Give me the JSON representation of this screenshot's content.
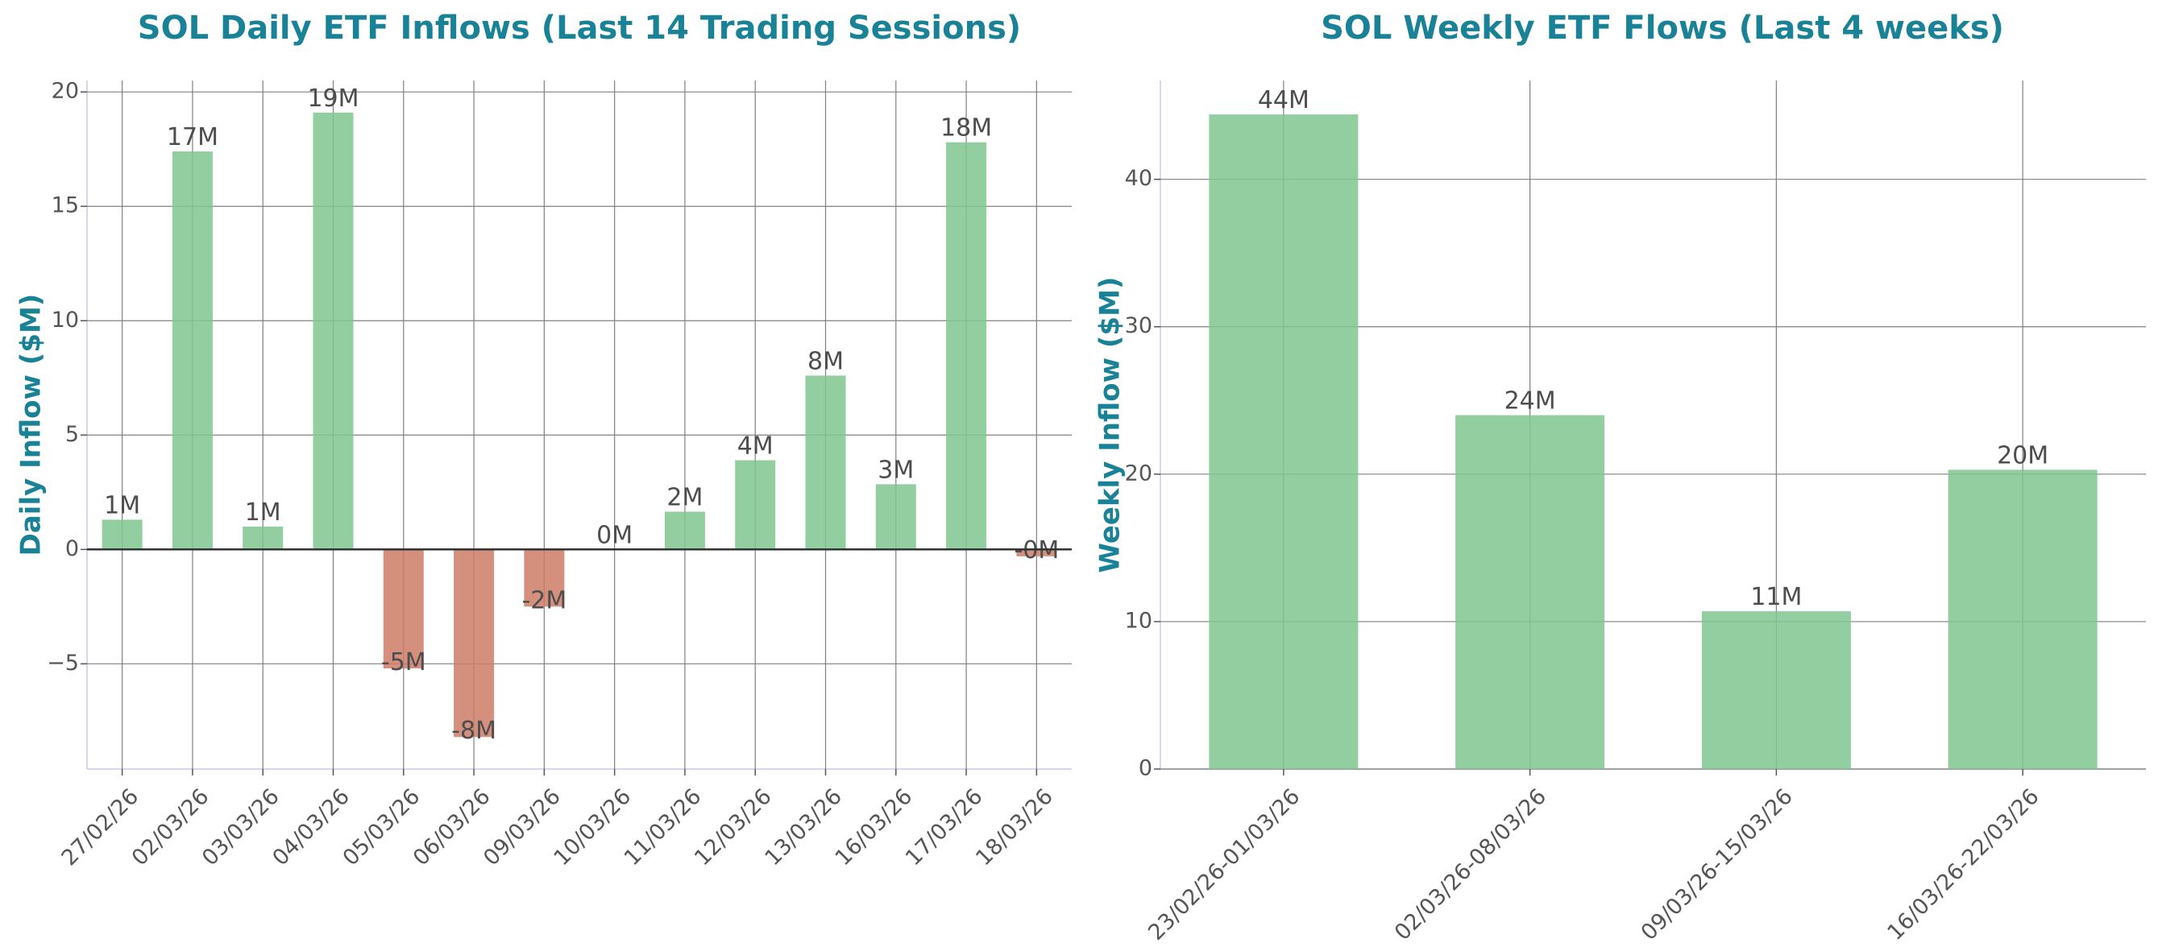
{
  "colors": {
    "title": "#1a8296",
    "positive": "#7fc68e",
    "negative": "#cc7b66",
    "grid": "#808080",
    "zero_line": "#333333",
    "axis": "#d6d6f0",
    "tick_text": "#555555",
    "data_label": "#4d4d4d"
  },
  "chart_data": [
    {
      "type": "bar",
      "title": "SOL Daily ETF Inflows (Last 14 Trading Sessions)",
      "xlabel": "",
      "ylabel": "Daily Inflow ($M)",
      "categories": [
        "27/02/26",
        "02/03/26",
        "03/03/26",
        "04/03/26",
        "05/03/26",
        "06/03/26",
        "09/03/26",
        "10/03/26",
        "11/03/26",
        "12/03/26",
        "13/03/26",
        "16/03/26",
        "17/03/26",
        "18/03/26"
      ],
      "values": [
        1.3,
        17.4,
        1.0,
        19.1,
        -5.2,
        -8.2,
        -2.5,
        0.0,
        1.65,
        3.9,
        7.6,
        2.85,
        17.8,
        -0.3
      ],
      "data_labels": [
        "1M",
        "17M",
        "1M",
        "19M",
        "-5M",
        "-8M",
        "-2M",
        "0M",
        "2M",
        "4M",
        "8M",
        "3M",
        "18M",
        "-0M"
      ],
      "yticks": [
        -5,
        0,
        5,
        10,
        15,
        20
      ],
      "ytick_labels": [
        "−5",
        "0",
        "5",
        "10",
        "15",
        "20"
      ],
      "ylim": [
        -9.6,
        20.5
      ],
      "grid": true,
      "zero_line": true
    },
    {
      "type": "bar",
      "title": "SOL Weekly ETF Flows (Last 4 weeks)",
      "xlabel": "",
      "ylabel": "Weekly Inflow ($M)",
      "categories": [
        "23/02/26-01/03/26",
        "02/03/26-08/03/26",
        "09/03/26-15/03/26",
        "16/03/26-22/03/26"
      ],
      "values": [
        44.4,
        24.0,
        10.7,
        20.3
      ],
      "data_labels": [
        "44M",
        "24M",
        "11M",
        "20M"
      ],
      "yticks": [
        0,
        10,
        20,
        30,
        40
      ],
      "ytick_labels": [
        "0",
        "10",
        "20",
        "30",
        "40"
      ],
      "ylim": [
        0,
        46.7
      ],
      "grid": true,
      "zero_line": false
    }
  ]
}
